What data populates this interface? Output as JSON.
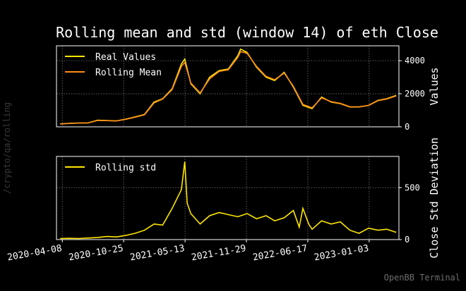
{
  "title": "Rolling mean and std (window 14) of eth Close",
  "side_text": "/crypto/qa/rolling",
  "watermark": "OpenBB Terminal",
  "colors": {
    "background": "#000000",
    "real": "#ffe600",
    "mean": "#ff8c1a",
    "std": "#ffe600",
    "grid": "#ffffff",
    "axis": "#ffffff",
    "watermark": "#6e6e6e"
  },
  "chart_data": [
    {
      "type": "line",
      "ylabel": "Values",
      "ylim": [
        0,
        4900
      ],
      "yticks": [
        0,
        2000,
        4000
      ],
      "grid": true,
      "legend": "top-left",
      "x_dates": [
        "2020-04-01",
        "2020-05-01",
        "2020-06-01",
        "2020-07-01",
        "2020-08-01",
        "2020-09-01",
        "2020-10-01",
        "2020-11-01",
        "2020-12-01",
        "2021-01-01",
        "2021-02-01",
        "2021-03-01",
        "2021-04-01",
        "2021-05-01",
        "2021-05-12",
        "2021-06-01",
        "2021-07-01",
        "2021-08-01",
        "2021-09-01",
        "2021-10-01",
        "2021-11-01",
        "2021-11-10",
        "2021-12-01",
        "2022-01-01",
        "2022-02-01",
        "2022-03-01",
        "2022-04-01",
        "2022-05-01",
        "2022-06-01",
        "2022-07-01",
        "2022-08-01",
        "2022-09-01",
        "2022-10-01",
        "2022-11-01",
        "2022-12-01",
        "2023-01-01",
        "2023-02-01",
        "2023-03-01",
        "2023-04-01"
      ],
      "series": [
        {
          "name": "Real Values",
          "values": [
            180,
            210,
            230,
            240,
            400,
            380,
            360,
            470,
            600,
            750,
            1500,
            1700,
            2300,
            3800,
            4100,
            2600,
            2000,
            3000,
            3400,
            3500,
            4300,
            4700,
            4500,
            3600,
            3000,
            2800,
            3300,
            2400,
            1300,
            1100,
            1800,
            1500,
            1400,
            1200,
            1200,
            1300,
            1600,
            1700,
            1900
          ]
        },
        {
          "name": "Rolling Mean",
          "values": [
            175,
            205,
            225,
            238,
            385,
            375,
            355,
            455,
            585,
            730,
            1450,
            1680,
            2250,
            3650,
            3900,
            2650,
            2050,
            2900,
            3350,
            3450,
            4200,
            4550,
            4450,
            3650,
            3050,
            2850,
            3250,
            2450,
            1350,
            1150,
            1750,
            1520,
            1420,
            1220,
            1210,
            1290,
            1580,
            1680,
            1870
          ]
        }
      ]
    },
    {
      "type": "line",
      "ylabel": "Close Std Deviation",
      "ylim": [
        0,
        800
      ],
      "yticks": [
        0,
        500
      ],
      "grid": true,
      "legend": "top-left",
      "x_dates": [
        "2020-04-01",
        "2020-05-01",
        "2020-06-01",
        "2020-07-01",
        "2020-08-01",
        "2020-09-01",
        "2020-10-01",
        "2020-11-01",
        "2020-12-01",
        "2021-01-01",
        "2021-02-01",
        "2021-03-01",
        "2021-04-01",
        "2021-05-01",
        "2021-05-12",
        "2021-05-20",
        "2021-06-01",
        "2021-07-01",
        "2021-08-01",
        "2021-09-01",
        "2021-10-01",
        "2021-11-01",
        "2021-12-01",
        "2022-01-01",
        "2022-02-01",
        "2022-03-01",
        "2022-04-01",
        "2022-05-01",
        "2022-05-20",
        "2022-06-01",
        "2022-06-20",
        "2022-07-01",
        "2022-08-01",
        "2022-09-01",
        "2022-10-01",
        "2022-11-01",
        "2022-12-01",
        "2023-01-01",
        "2023-02-01",
        "2023-03-01",
        "2023-04-01"
      ],
      "series": [
        {
          "name": "Rolling std",
          "values": [
            10,
            12,
            10,
            15,
            20,
            30,
            25,
            40,
            60,
            90,
            150,
            140,
            300,
            480,
            750,
            350,
            250,
            150,
            230,
            260,
            240,
            220,
            250,
            200,
            230,
            180,
            210,
            280,
            120,
            300,
            150,
            100,
            180,
            150,
            170,
            90,
            60,
            110,
            90,
            100,
            70
          ]
        }
      ],
      "xtick_labels": [
        "2020-04-08",
        "2020-10-25",
        "2021-05-13",
        "2021-11-29",
        "2022-06-17",
        "2023-01-03"
      ]
    }
  ]
}
